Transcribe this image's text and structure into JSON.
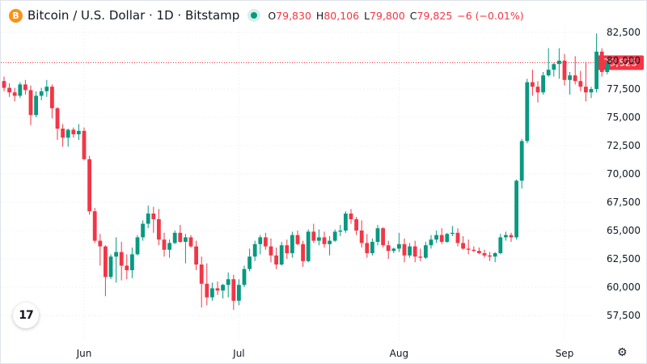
{
  "header": {
    "coin_glyph": "B",
    "symbol": "Bitcoin / U.S. Dollar · 1D · Bitstamp",
    "status_color": "#089981",
    "ohlc": [
      {
        "label": "O",
        "value": "79,830"
      },
      {
        "label": "H",
        "value": "80,106"
      },
      {
        "label": "L",
        "value": "79,800"
      },
      {
        "label": "C",
        "value": "79,825"
      }
    ],
    "change": "−6 (−0.01%)"
  },
  "logo_text": "17",
  "icons": {
    "logo": "tradingview-logo-icon",
    "settings": "settings-icon",
    "coin": "bitcoin-icon"
  },
  "colors": {
    "up": "#089981",
    "down": "#f23645",
    "grid": "#f0f3fa",
    "text": "#131722"
  },
  "chart_data": {
    "type": "candlestick",
    "y_ticks": [
      57500,
      60000,
      62500,
      65000,
      67500,
      70000,
      72500,
      75000,
      77500,
      80000,
      82500
    ],
    "y_tick_labels": [
      "57,500",
      "60,000",
      "62,500",
      "65,000",
      "67,500",
      "70,000",
      "72,500",
      "75,000",
      "77,500",
      "80,000",
      "82,500"
    ],
    "ylim": [
      55600,
      84000
    ],
    "x_ticks": [
      {
        "index": 15,
        "label": "Jun"
      },
      {
        "index": 44,
        "label": "Jul"
      },
      {
        "index": 74,
        "label": "Aug"
      },
      {
        "index": 105,
        "label": "Sep"
      }
    ],
    "last_price": 79825,
    "last_price_label": "79,825",
    "candles": [
      [
        78200,
        78600,
        77300,
        77600
      ],
      [
        77600,
        78000,
        76800,
        77200
      ],
      [
        77200,
        77600,
        76400,
        76900
      ],
      [
        76900,
        78100,
        76700,
        77900
      ],
      [
        77900,
        78300,
        77000,
        77400
      ],
      [
        77400,
        77800,
        74300,
        75200
      ],
      [
        75200,
        77300,
        75000,
        76900
      ],
      [
        76900,
        77600,
        76500,
        77300
      ],
      [
        77300,
        78300,
        76800,
        77700
      ],
      [
        77700,
        77900,
        74900,
        75800
      ],
      [
        75800,
        75900,
        73000,
        74000
      ],
      [
        74000,
        74400,
        72400,
        73200
      ],
      [
        73200,
        74000,
        72400,
        73900
      ],
      [
        73900,
        74100,
        73200,
        73500
      ],
      [
        73500,
        74400,
        73000,
        73800
      ],
      [
        73800,
        74100,
        71200,
        71300
      ],
      [
        71300,
        71600,
        66400,
        66700
      ],
      [
        66700,
        67000,
        63900,
        64100
      ],
      [
        64100,
        64700,
        61900,
        63600
      ],
      [
        63600,
        63700,
        59200,
        60900
      ],
      [
        60900,
        62900,
        60700,
        62700
      ],
      [
        62700,
        64400,
        60400,
        63100
      ],
      [
        63100,
        64000,
        60600,
        61900
      ],
      [
        61900,
        62900,
        60700,
        61500
      ],
      [
        61500,
        63500,
        60800,
        62900
      ],
      [
        62900,
        64600,
        62800,
        64400
      ],
      [
        64400,
        65900,
        64100,
        65600
      ],
      [
        65600,
        67200,
        65200,
        66500
      ],
      [
        66500,
        67100,
        64800,
        66000
      ],
      [
        66000,
        66900,
        63700,
        64200
      ],
      [
        64200,
        64800,
        62700,
        63300
      ],
      [
        63300,
        64200,
        62600,
        63900
      ],
      [
        63900,
        65000,
        63800,
        64800
      ],
      [
        64800,
        65500,
        63900,
        64000
      ],
      [
        64000,
        64700,
        62100,
        64400
      ],
      [
        64400,
        64600,
        63500,
        63600
      ],
      [
        63600,
        64100,
        61500,
        62000
      ],
      [
        62000,
        62700,
        58200,
        60300
      ],
      [
        60300,
        62100,
        58400,
        59100
      ],
      [
        59100,
        60400,
        58800,
        59900
      ],
      [
        59900,
        60500,
        59300,
        59700
      ],
      [
        59700,
        60300,
        59000,
        60200
      ],
      [
        60200,
        61300,
        59100,
        60700
      ],
      [
        60700,
        61100,
        58000,
        58800
      ],
      [
        58800,
        60700,
        58400,
        60200
      ],
      [
        60200,
        61900,
        60000,
        61600
      ],
      [
        61600,
        63400,
        61400,
        62700
      ],
      [
        62700,
        64100,
        62300,
        63800
      ],
      [
        63800,
        64600,
        62900,
        64400
      ],
      [
        64400,
        64800,
        63300,
        63600
      ],
      [
        63600,
        64300,
        62200,
        62800
      ],
      [
        62800,
        63500,
        61600,
        62000
      ],
      [
        62000,
        64000,
        61900,
        63700
      ],
      [
        63700,
        64200,
        62500,
        63000
      ],
      [
        63000,
        64900,
        62600,
        64600
      ],
      [
        64600,
        65000,
        63700,
        63800
      ],
      [
        63800,
        64100,
        61800,
        62300
      ],
      [
        62300,
        65100,
        62200,
        64900
      ],
      [
        64900,
        65600,
        63900,
        64100
      ],
      [
        64100,
        65100,
        63700,
        64400
      ],
      [
        64400,
        64900,
        63500,
        63800
      ],
      [
        63800,
        64500,
        62800,
        64100
      ],
      [
        64100,
        65100,
        64000,
        64900
      ],
      [
        64900,
        65500,
        64500,
        65000
      ],
      [
        65000,
        66700,
        64800,
        66500
      ],
      [
        66500,
        66900,
        65600,
        66000
      ],
      [
        66000,
        66200,
        64600,
        65000
      ],
      [
        65000,
        65900,
        63500,
        63900
      ],
      [
        63900,
        64700,
        62600,
        63000
      ],
      [
        63000,
        64300,
        62800,
        64000
      ],
      [
        64000,
        65500,
        63700,
        65200
      ],
      [
        65200,
        65300,
        63500,
        63700
      ],
      [
        63700,
        64100,
        62500,
        63200
      ],
      [
        63200,
        63500,
        63000,
        63400
      ],
      [
        63400,
        64800,
        63100,
        63800
      ],
      [
        63800,
        64300,
        62200,
        62800
      ],
      [
        62800,
        63900,
        62600,
        63600
      ],
      [
        63600,
        64100,
        62200,
        62700
      ],
      [
        62700,
        63400,
        62300,
        62600
      ],
      [
        62600,
        64000,
        62500,
        63700
      ],
      [
        63700,
        64600,
        63400,
        64200
      ],
      [
        64200,
        65000,
        63900,
        64600
      ],
      [
        64600,
        65200,
        63800,
        64000
      ],
      [
        64000,
        64800,
        63900,
        64700
      ],
      [
        64700,
        65400,
        64500,
        64800
      ],
      [
        64800,
        65200,
        63600,
        63900
      ],
      [
        63900,
        64500,
        63300,
        63400
      ],
      [
        63400,
        64200,
        62900,
        63300
      ],
      [
        63300,
        63600,
        63100,
        63200
      ],
      [
        63200,
        63500,
        62900,
        63000
      ],
      [
        63000,
        63300,
        62600,
        62800
      ],
      [
        62800,
        63100,
        62300,
        62700
      ],
      [
        62700,
        63100,
        62200,
        63000
      ],
      [
        63000,
        64700,
        62900,
        64400
      ],
      [
        64400,
        64900,
        64100,
        64600
      ],
      [
        64600,
        64800,
        64000,
        64400
      ],
      [
        64400,
        69500,
        64200,
        69400
      ],
      [
        69400,
        73100,
        68700,
        72900
      ],
      [
        72900,
        78400,
        72700,
        78100
      ],
      [
        78100,
        79200,
        76900,
        77700
      ],
      [
        77700,
        78200,
        76300,
        77200
      ],
      [
        77200,
        79000,
        77000,
        78700
      ],
      [
        78700,
        81100,
        78600,
        79200
      ],
      [
        79200,
        79800,
        78600,
        79700
      ],
      [
        79700,
        81100,
        78400,
        80000
      ],
      [
        80000,
        80600,
        77800,
        78300
      ],
      [
        78300,
        79000,
        77000,
        78700
      ],
      [
        78700,
        80400,
        77900,
        78200
      ],
      [
        78200,
        79100,
        77300,
        77700
      ],
      [
        77700,
        79900,
        76400,
        77200
      ],
      [
        77200,
        77700,
        76700,
        77500
      ],
      [
        77500,
        82400,
        77200,
        80800
      ],
      [
        80800,
        81100,
        78600,
        79000
      ],
      [
        79000,
        80000,
        78800,
        79830
      ],
      [
        79830,
        80106,
        79800,
        79825
      ]
    ]
  }
}
